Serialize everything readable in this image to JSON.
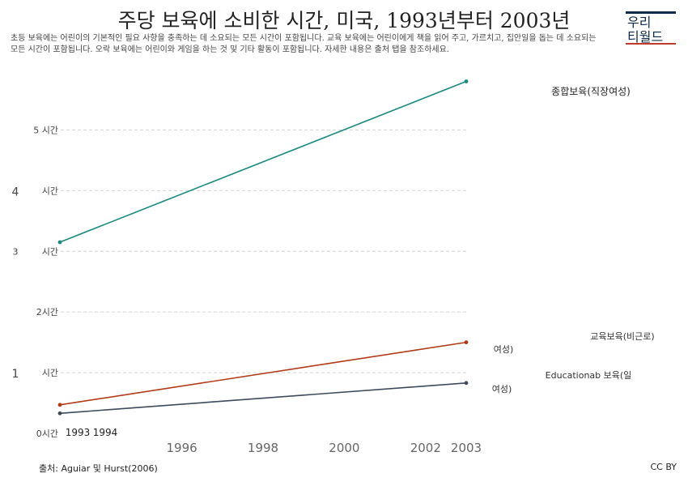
{
  "header": {
    "title": "주당 보육에 소비한 시간, 미국, 1993년부터 2003년",
    "subtitle": "초등 보육에는 어린이의 기본적인 필요 사항을 충족하는 데 소요되는 모든 시간이 포함됩니다. 교육 보육에는 어린이에게 책을 읽어 주고, 가르치고, 집안일을 돕는 데 소요되는 모든 시간이 포함됩니다. 오락 보육에는 어린이와 게임을 하는 것 및 기타 활동이 포함됩니다. 자세한 내용은 출처 탭을 참조하세요."
  },
  "logo": {
    "line1": "우리",
    "line2": "티월드"
  },
  "footer": {
    "source": "출처: Aguiar 및 Hurst(2006)",
    "license": "CC BY"
  },
  "chart_data": {
    "type": "line",
    "x": [
      1993,
      2003
    ],
    "xlim": [
      1993,
      2003
    ],
    "ylim": [
      0,
      5.7
    ],
    "grid": true,
    "x_ticks": [
      "1996",
      "1998",
      "2000",
      "2002",
      "2003"
    ],
    "x_ticks_bottom_left": [
      "1993",
      "1994"
    ],
    "y_tick_labels": [
      {
        "value": 0,
        "main": "0시간",
        "left": ""
      },
      {
        "value": 1,
        "main": "시간",
        "left": "1"
      },
      {
        "value": 2,
        "main": "2시간",
        "left": ""
      },
      {
        "value": 3,
        "main": "시간",
        "left": "3"
      },
      {
        "value": 4,
        "main": "시간",
        "left": "4"
      },
      {
        "value": 5,
        "main": "5 시간",
        "left": ""
      }
    ],
    "series": [
      {
        "name": "종합보육(직장여성)",
        "values": [
          3.15,
          5.8
        ],
        "color": "#1a8a80"
      },
      {
        "name": "교육보육(비근로) 여성)",
        "values": [
          0.47,
          1.5
        ],
        "color": "#b33a16"
      },
      {
        "name": "Educationab 보육(일 여성)",
        "values": [
          0.33,
          0.83
        ],
        "color": "#3c4a5c"
      }
    ]
  }
}
